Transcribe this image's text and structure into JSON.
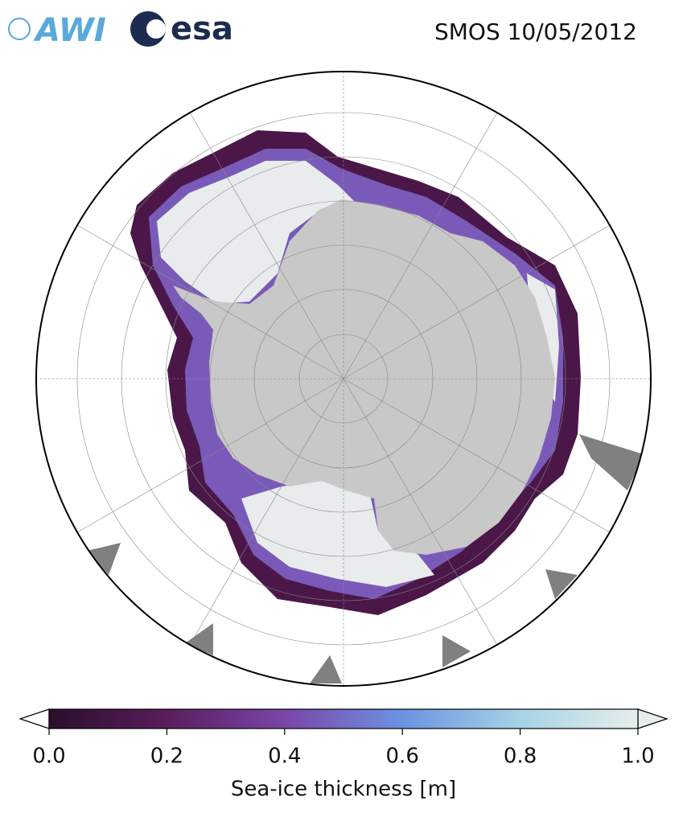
{
  "header": {
    "logos": [
      "AWI",
      "esa"
    ],
    "title": "SMOS 10/05/2012"
  },
  "colorbar": {
    "label": "Sea-ice thickness [m]",
    "lim": [
      0,
      1
    ],
    "ticks": [
      {
        "value": 0,
        "label": "0.0"
      },
      0.2,
      0.4,
      0.6,
      0.8,
      {
        "value": 1,
        "label": "1.0"
      }
    ],
    "colors": [
      "#2a0f2b",
      "#5a1d5c",
      "#7a45a8",
      "#6c93e2",
      "#a6d3e6",
      "#e6eeec"
    ]
  }
}
